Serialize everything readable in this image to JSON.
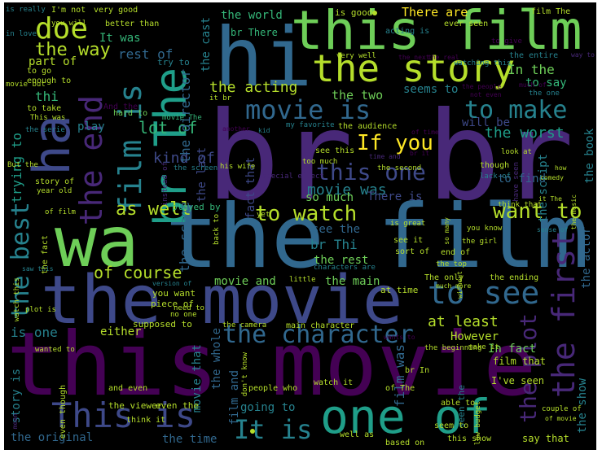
{
  "palette": {
    "purple": "#440154",
    "darkpurple": "#482878",
    "indigo": "#3e4989",
    "blue": "#31688e",
    "teal": "#26828e",
    "green": "#1f9e89",
    "lgreen": "#35b779",
    "lime": "#6ece58",
    "yellow": "#b5de2b",
    "bright": "#fde725"
  },
  "words": [
    {
      "text": "br br"
    },
    {
      "text": "this movie"
    },
    {
      "text": "the film"
    },
    {
      "text": "the movie"
    },
    {
      "text": "wa"
    },
    {
      "text": "this film"
    },
    {
      "text": "hi"
    },
    {
      "text": "ha"
    },
    {
      "text": "the story"
    },
    {
      "text": "br The"
    },
    {
      "text": "film is"
    },
    {
      "text": "the end"
    },
    {
      "text": "doe"
    },
    {
      "text": "one of"
    },
    {
      "text": "This is"
    },
    {
      "text": "the first"
    },
    {
      "text": "movie is"
    },
    {
      "text": "to see"
    },
    {
      "text": "to make"
    },
    {
      "text": "the best"
    },
    {
      "text": "the character"
    },
    {
      "text": "It is"
    },
    {
      "text": "to watch"
    },
    {
      "text": "want to"
    },
    {
      "text": "this one"
    },
    {
      "text": "If you"
    },
    {
      "text": "the plot"
    },
    {
      "text": "as well"
    },
    {
      "text": "of course"
    },
    {
      "text": "lot of"
    },
    {
      "text": "the way"
    },
    {
      "text": "the acting"
    },
    {
      "text": "kind of"
    },
    {
      "text": "at least"
    },
    {
      "text": "movie was"
    },
    {
      "text": "the worst"
    },
    {
      "text": "There are"
    },
    {
      "text": "the world"
    },
    {
      "text": "It was"
    },
    {
      "text": "rest of"
    },
    {
      "text": "part of"
    },
    {
      "text": "the director"
    },
    {
      "text": "the cast"
    },
    {
      "text": "br There"
    },
    {
      "text": "trying to"
    },
    {
      "text": "the two"
    },
    {
      "text": "seems to"
    },
    {
      "text": "In the"
    },
    {
      "text": "to say"
    },
    {
      "text": "will be"
    },
    {
      "text": "fact that"
    },
    {
      "text": "the last"
    },
    {
      "text": "the scene"
    },
    {
      "text": "so much"
    },
    {
      "text": "There is"
    },
    {
      "text": "see the"
    },
    {
      "text": "br Thi"
    },
    {
      "text": "the rest"
    },
    {
      "text": "the main"
    },
    {
      "text": "movie and"
    },
    {
      "text": "the book"
    },
    {
      "text": "the script"
    },
    {
      "text": "to find"
    },
    {
      "text": "the actor"
    },
    {
      "text": "However"
    },
    {
      "text": "In fact"
    },
    {
      "text": "film was"
    },
    {
      "text": "is one"
    },
    {
      "text": "either"
    },
    {
      "text": "story is"
    },
    {
      "text": "the original"
    },
    {
      "text": "the time"
    },
    {
      "text": "going to"
    },
    {
      "text": "the whole"
    },
    {
      "text": "film and"
    },
    {
      "text": "movie that"
    },
    {
      "text": "the show"
    },
    {
      "text": "I've seen"
    },
    {
      "text": "film that"
    },
    {
      "text": "say that"
    },
    {
      "text": "the viewer"
    },
    {
      "text": "even the"
    },
    {
      "text": "seen the"
    },
    {
      "text": "you want"
    },
    {
      "text": "piece of"
    },
    {
      "text": "supposed to"
    },
    {
      "text": "play"
    },
    {
      "text": "played by"
    },
    {
      "text": "thi"
    },
    {
      "text": "is really"
    },
    {
      "text": "I'm not"
    },
    {
      "text": "very good"
    },
    {
      "text": "is good"
    },
    {
      "text": "film The"
    },
    {
      "text": "in love"
    },
    {
      "text": "better than"
    },
    {
      "text": "acting is"
    },
    {
      "text": "ever seen"
    },
    {
      "text": "to give"
    },
    {
      "text": "you will"
    },
    {
      "text": "to go"
    },
    {
      "text": "enough to"
    },
    {
      "text": "movie but"
    },
    {
      "text": "try to"
    },
    {
      "text": "the entire"
    },
    {
      "text": "very well"
    },
    {
      "text": "watching this"
    },
    {
      "text": "the one"
    },
    {
      "text": "And the"
    },
    {
      "text": "hard to"
    },
    {
      "text": "to take"
    },
    {
      "text": "This was"
    },
    {
      "text": "movie The"
    },
    {
      "text": "the serie"
    },
    {
      "text": "the audience"
    },
    {
      "text": "my favorite"
    },
    {
      "text": "see this"
    },
    {
      "text": "too much"
    },
    {
      "text": "though"
    },
    {
      "text": "look at"
    },
    {
      "text": "his wife"
    },
    {
      "text": "the second"
    },
    {
      "text": "But the"
    },
    {
      "text": "the screen"
    },
    {
      "text": "story of"
    },
    {
      "text": "year old"
    },
    {
      "text": "instead of"
    },
    {
      "text": "special effect"
    },
    {
      "text": "lack of"
    },
    {
      "text": "have seen"
    },
    {
      "text": "think that"
    },
    {
      "text": "is great"
    },
    {
      "text": "you know"
    },
    {
      "text": "the girl"
    },
    {
      "text": "see it"
    },
    {
      "text": "sort of"
    },
    {
      "text": "end of"
    },
    {
      "text": "the top"
    },
    {
      "text": "The only"
    },
    {
      "text": "the ending"
    },
    {
      "text": "back to"
    },
    {
      "text": "characters are"
    },
    {
      "text": "yet"
    },
    {
      "text": "little"
    },
    {
      "text": "at time"
    },
    {
      "text": "much more"
    },
    {
      "text": "main character"
    },
    {
      "text": "the camera"
    },
    {
      "text": "no one"
    },
    {
      "text": "need to"
    },
    {
      "text": "plot is"
    },
    {
      "text": "wanted to"
    },
    {
      "text": "and even"
    },
    {
      "text": "even though"
    },
    {
      "text": "people who"
    },
    {
      "text": "don't know"
    },
    {
      "text": "the beginning"
    },
    {
      "text": "make it"
    },
    {
      "text": "br In"
    },
    {
      "text": "watch it"
    },
    {
      "text": "of The"
    },
    {
      "text": "able to"
    },
    {
      "text": "low budget"
    },
    {
      "text": "think it"
    },
    {
      "text": "well as"
    },
    {
      "text": "based on"
    },
    {
      "text": "seem to"
    },
    {
      "text": "this show"
    },
    {
      "text": "couple of"
    },
    {
      "text": "of movie"
    },
    {
      "text": "it br"
    },
    {
      "text": "the real"
    },
    {
      "text": "not even"
    },
    {
      "text": "the people"
    },
    {
      "text": "much of"
    },
    {
      "text": "the next"
    },
    {
      "text": "of time"
    },
    {
      "text": "watch this"
    },
    {
      "text": "saw this"
    },
    {
      "text": "the fact"
    },
    {
      "text": "of film"
    },
    {
      "text": "version of"
    },
    {
      "text": "br it"
    },
    {
      "text": "comedy"
    },
    {
      "text": "so many"
    },
    {
      "text": "sense of"
    },
    {
      "text": "way to"
    },
    {
      "text": "it The"
    },
    {
      "text": "the music"
    },
    {
      "text": "kid"
    },
    {
      "text": "another"
    },
    {
      "text": "time and"
    },
    {
      "text": "mean"
    },
    {
      "text": "without"
    },
    {
      "text": "wants to"
    },
    {
      "text": "how"
    }
  ]
}
